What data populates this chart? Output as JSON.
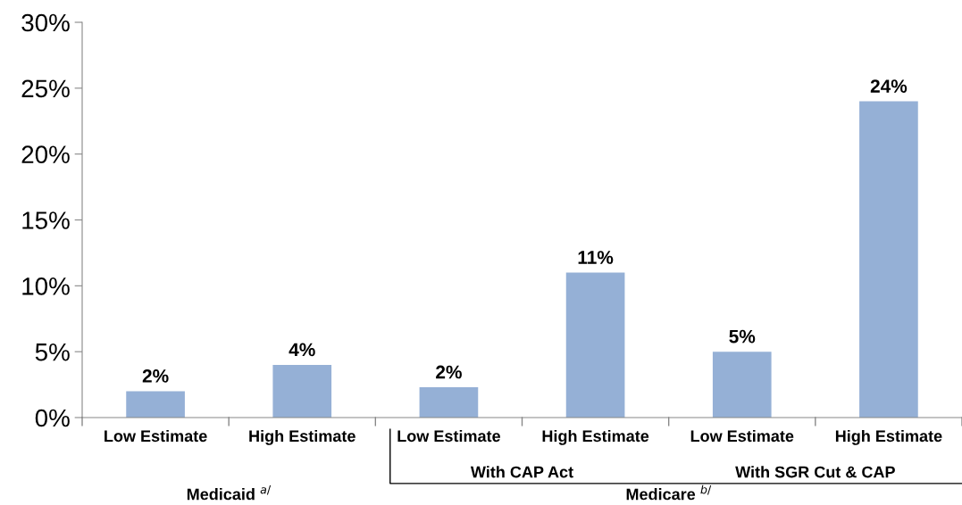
{
  "chart_data": {
    "type": "bar",
    "categories": [
      "Low Estimate",
      "High Estimate",
      "Low Estimate",
      "High Estimate",
      "Low Estimate",
      "High Estimate"
    ],
    "values": [
      2,
      4,
      2.3,
      11,
      5,
      24
    ],
    "value_labels": [
      "2%",
      "4%",
      "2%",
      "11%",
      "5%",
      "24%"
    ],
    "color": "#95b0d6",
    "ylim": [
      0,
      30
    ],
    "yticks": [
      {
        "value": 0,
        "label": "0%"
      },
      {
        "value": 5,
        "label": "5%"
      },
      {
        "value": 10,
        "label": "10%"
      },
      {
        "value": 15,
        "label": "15%"
      },
      {
        "value": 20,
        "label": "20%"
      },
      {
        "value": 25,
        "label": "25%"
      },
      {
        "value": 30,
        "label": "30%"
      }
    ],
    "grid": false,
    "annotations": [
      "With CAP Act",
      "With SGR Cut & CAP",
      "Medicaid $^{a/}$",
      "Medicare $^{b/}$"
    ]
  }
}
